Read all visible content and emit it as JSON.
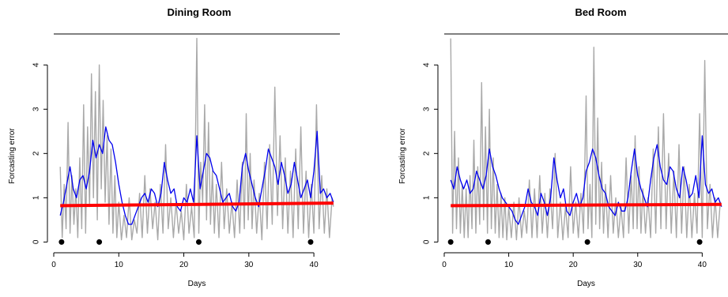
{
  "chart_data": [
    {
      "type": "line",
      "title": "Dining Room",
      "xlabel": "Days",
      "ylabel": "Forcasting error",
      "xlim": [
        0,
        44
      ],
      "ylim": [
        -0.1,
        4.7
      ],
      "xticks": [
        0,
        10,
        20,
        30,
        40
      ],
      "yticks": [
        0,
        1,
        2,
        3,
        4
      ],
      "grid": false,
      "series": [
        {
          "role": "raw_error",
          "color": "#a9a9a9",
          "x": [
            1.0,
            1.3,
            1.6,
            1.9,
            2.2,
            2.5,
            2.8,
            3.1,
            3.4,
            3.7,
            4.0,
            4.3,
            4.6,
            4.9,
            5.2,
            5.5,
            5.8,
            6.1,
            6.4,
            6.7,
            7.0,
            7.3,
            7.6,
            7.9,
            8.2,
            8.5,
            8.8,
            9.1,
            9.4,
            9.7,
            10.0,
            10.4,
            10.8,
            11.2,
            11.6,
            12.0,
            12.4,
            12.8,
            13.2,
            13.6,
            14.0,
            14.4,
            14.8,
            15.2,
            15.6,
            16.0,
            16.4,
            16.8,
            17.2,
            17.6,
            18.0,
            18.4,
            18.8,
            19.2,
            19.6,
            20.0,
            20.4,
            20.8,
            21.2,
            21.6,
            22.0,
            22.3,
            22.6,
            22.9,
            23.2,
            23.5,
            23.8,
            24.1,
            24.4,
            24.7,
            25.0,
            25.4,
            25.8,
            26.2,
            26.6,
            27.0,
            27.4,
            27.8,
            28.2,
            28.6,
            29.0,
            29.3,
            29.6,
            29.9,
            30.2,
            30.5,
            30.8,
            31.2,
            31.6,
            32.0,
            32.4,
            32.8,
            33.2,
            33.6,
            34.0,
            34.4,
            34.8,
            35.2,
            35.6,
            36.0,
            36.4,
            36.8,
            37.2,
            37.6,
            38.0,
            38.4,
            38.8,
            39.2,
            39.6,
            40.0,
            40.4,
            40.8,
            41.2,
            41.6,
            42.0,
            42.4,
            42.8,
            43.0
          ],
          "values": [
            1.7,
            0.1,
            1.3,
            0.3,
            2.7,
            0.2,
            1.5,
            0.4,
            1.2,
            0.1,
            1.9,
            0.3,
            3.1,
            0.2,
            2.6,
            0.8,
            3.8,
            1.0,
            3.4,
            0.5,
            4.0,
            1.2,
            3.2,
            0.9,
            2.4,
            0.4,
            2.1,
            0.2,
            1.5,
            0.1,
            0.9,
            0.05,
            0.6,
            0.1,
            1.0,
            0.05,
            0.5,
            0.2,
            1.1,
            0.1,
            1.5,
            0.2,
            1.2,
            0.3,
            0.9,
            0.05,
            1.3,
            0.2,
            2.2,
            0.3,
            1.0,
            0.1,
            0.9,
            0.2,
            0.7,
            0.05,
            1.3,
            0.2,
            0.8,
            0.1,
            4.6,
            0.2,
            1.8,
            0.9,
            3.1,
            0.5,
            2.7,
            0.4,
            1.6,
            0.2,
            1.3,
            0.1,
            1.8,
            0.3,
            1.2,
            0.2,
            0.9,
            0.1,
            1.4,
            0.2,
            1.8,
            0.3,
            2.9,
            0.5,
            2.0,
            0.3,
            1.4,
            0.2,
            1.1,
            0.05,
            1.8,
            0.3,
            2.2,
            0.4,
            3.5,
            0.6,
            2.4,
            0.3,
            1.9,
            0.2,
            1.6,
            0.1,
            2.1,
            0.3,
            2.6,
            0.2,
            1.6,
            0.1,
            1.3,
            0.2,
            3.1,
            0.3,
            1.5,
            0.2,
            1.2,
            0.1,
            1.0,
            0.8
          ]
        },
        {
          "role": "smoothed_error",
          "color": "#0000ee",
          "x": [
            1.0,
            1.5,
            2.0,
            2.5,
            3.0,
            3.5,
            4.0,
            4.5,
            5.0,
            5.5,
            6.0,
            6.5,
            7.0,
            7.5,
            8.0,
            8.5,
            9.0,
            9.5,
            10.0,
            10.5,
            11.0,
            11.5,
            12.0,
            12.5,
            13.0,
            13.5,
            14.0,
            14.5,
            15.0,
            15.5,
            16.0,
            16.5,
            17.0,
            17.5,
            18.0,
            18.5,
            19.0,
            19.5,
            20.0,
            20.5,
            21.0,
            21.5,
            22.0,
            22.5,
            23.0,
            23.5,
            24.0,
            24.5,
            25.0,
            25.5,
            26.0,
            26.5,
            27.0,
            27.5,
            28.0,
            28.5,
            29.0,
            29.5,
            30.0,
            30.5,
            31.0,
            31.5,
            32.0,
            32.5,
            33.0,
            33.5,
            34.0,
            34.5,
            35.0,
            35.5,
            36.0,
            36.5,
            37.0,
            37.5,
            38.0,
            38.5,
            39.0,
            39.5,
            40.0,
            40.5,
            41.0,
            41.5,
            42.0,
            42.5,
            43.0
          ],
          "values": [
            0.6,
            0.9,
            1.3,
            1.7,
            1.2,
            1.0,
            1.4,
            1.5,
            1.2,
            1.6,
            2.3,
            1.9,
            2.2,
            2.0,
            2.6,
            2.3,
            2.2,
            1.8,
            1.3,
            0.9,
            0.6,
            0.4,
            0.4,
            0.6,
            0.8,
            1.0,
            1.1,
            0.9,
            1.2,
            1.1,
            0.8,
            1.1,
            1.8,
            1.4,
            1.1,
            1.2,
            0.8,
            0.7,
            1.0,
            0.9,
            1.2,
            0.9,
            2.4,
            1.2,
            1.6,
            2.0,
            1.9,
            1.6,
            1.5,
            1.2,
            0.9,
            1.0,
            1.1,
            0.8,
            0.7,
            0.9,
            1.7,
            2.0,
            1.6,
            1.3,
            1.0,
            0.8,
            1.2,
            1.6,
            2.1,
            1.9,
            1.7,
            1.3,
            1.8,
            1.5,
            1.1,
            1.3,
            1.8,
            1.4,
            1.0,
            1.2,
            1.4,
            1.0,
            1.6,
            2.5,
            1.1,
            1.2,
            1.0,
            1.1,
            0.9
          ]
        },
        {
          "role": "trend",
          "color": "#ff0000",
          "x": [
            1,
            43
          ],
          "values": [
            0.82,
            0.88
          ]
        },
        {
          "role": "markers",
          "color": "#000000",
          "x": [
            1.2,
            7.0,
            22.3,
            39.5
          ],
          "values": [
            0,
            0,
            0,
            0
          ]
        }
      ]
    },
    {
      "type": "line",
      "title": "Bed Room",
      "xlabel": "Days",
      "ylabel": "Forcasting error",
      "xlim": [
        0,
        44
      ],
      "ylim": [
        -0.1,
        4.7
      ],
      "xticks": [
        0,
        10,
        20,
        30,
        40
      ],
      "yticks": [
        0,
        1,
        2,
        3,
        4
      ],
      "grid": false,
      "series": [
        {
          "role": "raw_error",
          "color": "#a9a9a9",
          "x": [
            1.0,
            1.3,
            1.6,
            1.9,
            2.2,
            2.5,
            2.8,
            3.1,
            3.4,
            3.7,
            4.0,
            4.3,
            4.6,
            4.9,
            5.2,
            5.5,
            5.8,
            6.1,
            6.4,
            6.7,
            7.0,
            7.3,
            7.6,
            7.9,
            8.2,
            8.5,
            8.8,
            9.1,
            9.4,
            9.7,
            10.0,
            10.4,
            10.8,
            11.2,
            11.6,
            12.0,
            12.4,
            12.8,
            13.2,
            13.6,
            14.0,
            14.4,
            14.8,
            15.2,
            15.6,
            16.0,
            16.4,
            16.8,
            17.2,
            17.6,
            18.0,
            18.4,
            18.8,
            19.2,
            19.6,
            20.0,
            20.4,
            20.8,
            21.2,
            21.6,
            22.0,
            22.3,
            22.6,
            22.9,
            23.2,
            23.5,
            23.8,
            24.1,
            24.4,
            24.7,
            25.0,
            25.4,
            25.8,
            26.2,
            26.6,
            27.0,
            27.4,
            27.8,
            28.2,
            28.6,
            29.0,
            29.3,
            29.6,
            29.9,
            30.2,
            30.5,
            30.8,
            31.2,
            31.6,
            32.0,
            32.4,
            32.8,
            33.2,
            33.6,
            34.0,
            34.4,
            34.8,
            35.2,
            35.6,
            36.0,
            36.4,
            36.8,
            37.2,
            37.6,
            38.0,
            38.4,
            38.8,
            39.2,
            39.6,
            40.0,
            40.4,
            40.8,
            41.2,
            41.6,
            42.0,
            42.4,
            42.8,
            43.0
          ],
          "values": [
            4.6,
            0.2,
            2.5,
            0.3,
            1.9,
            0.2,
            1.3,
            0.1,
            1.2,
            0.1,
            1.5,
            0.3,
            2.3,
            0.2,
            1.7,
            0.4,
            3.6,
            0.5,
            2.6,
            0.2,
            3.0,
            0.3,
            1.9,
            0.2,
            1.3,
            0.1,
            1.1,
            0.1,
            1.0,
            0.05,
            0.8,
            0.1,
            0.9,
            0.05,
            1.0,
            0.1,
            0.7,
            0.2,
            1.4,
            0.1,
            1.2,
            0.1,
            1.5,
            0.2,
            1.1,
            0.1,
            1.2,
            0.3,
            2.0,
            0.1,
            0.9,
            0.05,
            0.8,
            0.1,
            1.7,
            0.2,
            0.9,
            0.1,
            1.1,
            0.2,
            3.3,
            0.3,
            1.3,
            0.1,
            4.4,
            0.4,
            2.8,
            0.3,
            1.8,
            0.2,
            1.3,
            0.1,
            1.5,
            0.2,
            1.0,
            0.1,
            0.8,
            0.1,
            1.9,
            0.2,
            1.5,
            0.3,
            2.4,
            0.3,
            1.7,
            0.2,
            1.2,
            0.2,
            1.0,
            0.1,
            2.1,
            0.2,
            2.6,
            0.3,
            2.9,
            0.3,
            2.0,
            0.2,
            1.6,
            0.1,
            2.2,
            0.2,
            1.7,
            0.1,
            1.3,
            0.1,
            1.1,
            0.2,
            2.9,
            0.1,
            4.1,
            0.3,
            1.3,
            0.1,
            1.0,
            0.1,
            0.9,
            0.8
          ]
        },
        {
          "role": "smoothed_error",
          "color": "#0000ee",
          "x": [
            1.0,
            1.5,
            2.0,
            2.5,
            3.0,
            3.5,
            4.0,
            4.5,
            5.0,
            5.5,
            6.0,
            6.5,
            7.0,
            7.5,
            8.0,
            8.5,
            9.0,
            9.5,
            10.0,
            10.5,
            11.0,
            11.5,
            12.0,
            12.5,
            13.0,
            13.5,
            14.0,
            14.5,
            15.0,
            15.5,
            16.0,
            16.5,
            17.0,
            17.5,
            18.0,
            18.5,
            19.0,
            19.5,
            20.0,
            20.5,
            21.0,
            21.5,
            22.0,
            22.5,
            23.0,
            23.5,
            24.0,
            24.5,
            25.0,
            25.5,
            26.0,
            26.5,
            27.0,
            27.5,
            28.0,
            28.5,
            29.0,
            29.5,
            30.0,
            30.5,
            31.0,
            31.5,
            32.0,
            32.5,
            33.0,
            33.5,
            34.0,
            34.5,
            35.0,
            35.5,
            36.0,
            36.5,
            37.0,
            37.5,
            38.0,
            38.5,
            39.0,
            39.5,
            40.0,
            40.5,
            41.0,
            41.5,
            42.0,
            42.5,
            43.0
          ],
          "values": [
            1.4,
            1.2,
            1.7,
            1.4,
            1.2,
            1.4,
            1.1,
            1.2,
            1.6,
            1.4,
            1.2,
            1.5,
            2.1,
            1.7,
            1.5,
            1.2,
            1.0,
            0.9,
            0.8,
            0.7,
            0.5,
            0.4,
            0.6,
            0.8,
            1.2,
            0.9,
            0.8,
            0.6,
            1.1,
            0.9,
            0.6,
            1.0,
            1.9,
            1.4,
            1.0,
            1.2,
            0.7,
            0.6,
            0.9,
            1.1,
            0.8,
            1.0,
            1.6,
            1.8,
            2.1,
            1.9,
            1.5,
            1.2,
            1.1,
            0.8,
            0.7,
            0.6,
            0.9,
            0.7,
            0.7,
            1.0,
            1.6,
            2.1,
            1.5,
            1.2,
            1.0,
            0.8,
            1.4,
            1.9,
            2.2,
            1.7,
            1.4,
            1.3,
            1.7,
            1.6,
            1.2,
            1.0,
            1.7,
            1.4,
            1.0,
            1.1,
            1.5,
            1.0,
            2.4,
            1.3,
            1.1,
            1.2,
            0.9,
            1.0,
            0.8
          ]
        },
        {
          "role": "trend",
          "color": "#ff0000",
          "x": [
            1,
            43
          ],
          "values": [
            0.82,
            0.85
          ]
        },
        {
          "role": "markers",
          "color": "#000000",
          "x": [
            1.0,
            6.8,
            22.2,
            39.6
          ],
          "values": [
            0,
            0,
            0,
            0
          ]
        }
      ]
    }
  ]
}
